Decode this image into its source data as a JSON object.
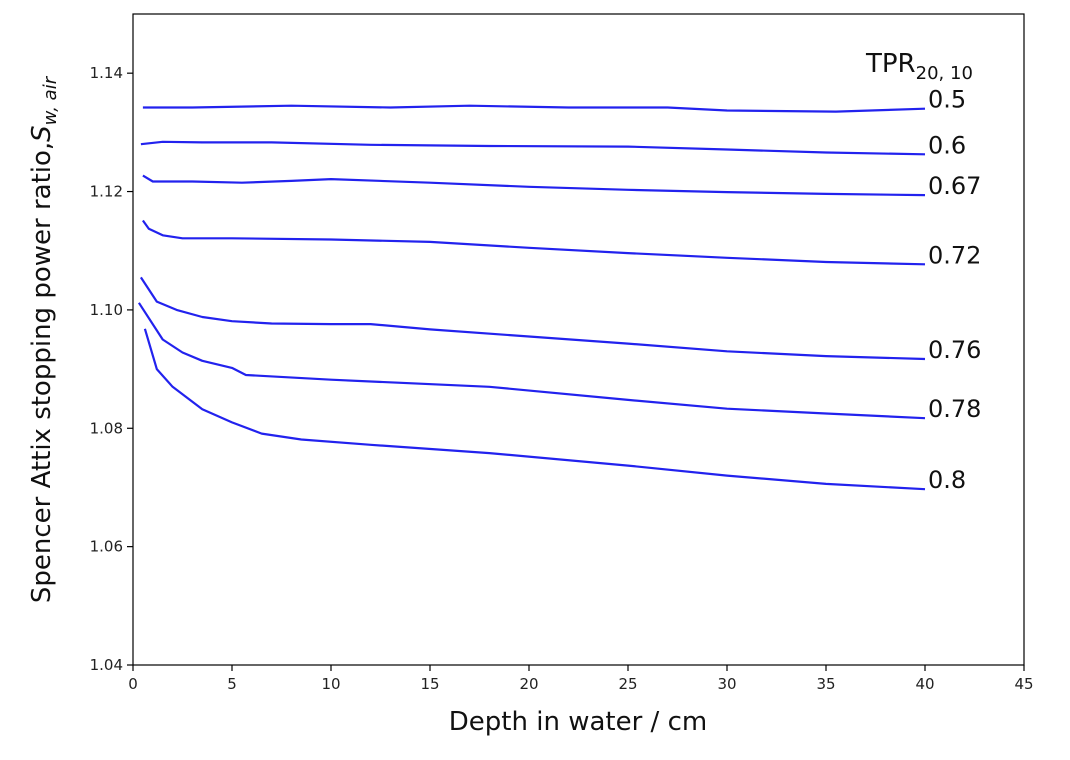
{
  "chart_data": {
    "type": "line",
    "xlabel": "Depth in water / cm",
    "ylabel": {
      "main": "Spencer Attix stopping power ratio,",
      "symbol": "S",
      "subscript": "w, air"
    },
    "legend_title": {
      "main": "TPR",
      "subscript": "20, 10"
    },
    "xlim": [
      0,
      45
    ],
    "ylim": [
      1.04,
      1.15
    ],
    "x_ticks": [
      {
        "value": 0,
        "label": "0"
      },
      {
        "value": 5,
        "label": "5"
      },
      {
        "value": 10,
        "label": "10"
      },
      {
        "value": 15,
        "label": "15"
      },
      {
        "value": 20,
        "label": "20"
      },
      {
        "value": 25,
        "label": "25"
      },
      {
        "value": 30,
        "label": "30"
      },
      {
        "value": 35,
        "label": "35"
      },
      {
        "value": 40,
        "label": "40"
      },
      {
        "value": 45,
        "label": "45"
      }
    ],
    "y_ticks": [
      {
        "value": 1.04,
        "label": "1.04"
      },
      {
        "value": 1.06,
        "label": "1.06"
      },
      {
        "value": 1.08,
        "label": "1.08"
      },
      {
        "value": 1.1,
        "label": "1.10"
      },
      {
        "value": 1.12,
        "label": "1.12"
      },
      {
        "value": 1.14,
        "label": "1.14"
      }
    ],
    "grid": false,
    "line_color": "#2222ee",
    "series": [
      {
        "name": "0.5",
        "points": [
          [
            0.5,
            1.1342
          ],
          [
            3,
            1.1342
          ],
          [
            8,
            1.1345
          ],
          [
            13,
            1.1342
          ],
          [
            17,
            1.1345
          ],
          [
            22,
            1.1342
          ],
          [
            27,
            1.1342
          ],
          [
            30,
            1.1337
          ],
          [
            35.5,
            1.1335
          ],
          [
            40,
            1.134
          ]
        ]
      },
      {
        "name": "0.6",
        "points": [
          [
            0.4,
            1.128
          ],
          [
            1.5,
            1.1284
          ],
          [
            3.5,
            1.1283
          ],
          [
            7,
            1.1283
          ],
          [
            12,
            1.1279
          ],
          [
            18,
            1.1277
          ],
          [
            25,
            1.1276
          ],
          [
            30,
            1.1271
          ],
          [
            35,
            1.1266
          ],
          [
            40,
            1.1263
          ]
        ]
      },
      {
        "name": "0.67",
        "points": [
          [
            0.5,
            1.1227
          ],
          [
            1,
            1.1217
          ],
          [
            3,
            1.1217
          ],
          [
            5.5,
            1.1215
          ],
          [
            8,
            1.1218
          ],
          [
            10,
            1.1221
          ],
          [
            15,
            1.1215
          ],
          [
            20,
            1.1208
          ],
          [
            25,
            1.1203
          ],
          [
            30,
            1.1199
          ],
          [
            35,
            1.1196
          ],
          [
            40,
            1.1194
          ]
        ]
      },
      {
        "name": "0.72",
        "points": [
          [
            0.5,
            1.1151
          ],
          [
            0.8,
            1.1137
          ],
          [
            1.5,
            1.1126
          ],
          [
            2.5,
            1.1121
          ],
          [
            5,
            1.1121
          ],
          [
            10,
            1.1119
          ],
          [
            15,
            1.1115
          ],
          [
            20,
            1.1105
          ],
          [
            25,
            1.1096
          ],
          [
            30,
            1.1088
          ],
          [
            35,
            1.1081
          ],
          [
            40,
            1.1077
          ]
        ]
      },
      {
        "name": "0.76",
        "points": [
          [
            0.4,
            1.1055
          ],
          [
            1.2,
            1.1014
          ],
          [
            2.2,
            1.1
          ],
          [
            3.5,
            1.0988
          ],
          [
            5,
            1.0981
          ],
          [
            7,
            1.0977
          ],
          [
            10,
            1.0976
          ],
          [
            12,
            1.0976
          ],
          [
            15,
            1.0967
          ],
          [
            20,
            1.0955
          ],
          [
            25,
            1.0943
          ],
          [
            30,
            1.093
          ],
          [
            35,
            1.0922
          ],
          [
            40,
            1.0917
          ]
        ]
      },
      {
        "name": "0.78",
        "points": [
          [
            0.3,
            1.1012
          ],
          [
            1.5,
            1.095
          ],
          [
            2.5,
            1.0928
          ],
          [
            3.5,
            1.0914
          ],
          [
            5,
            1.0902
          ],
          [
            5.7,
            1.089
          ],
          [
            10,
            1.0882
          ],
          [
            18,
            1.087
          ],
          [
            25,
            1.0848
          ],
          [
            30,
            1.0833
          ],
          [
            35,
            1.0825
          ],
          [
            40,
            1.0817
          ]
        ]
      },
      {
        "name": "0.8",
        "points": [
          [
            0.6,
            1.0968
          ],
          [
            1.2,
            1.09
          ],
          [
            2,
            1.087
          ],
          [
            3.5,
            1.0832
          ],
          [
            5,
            1.081
          ],
          [
            6.5,
            1.0791
          ],
          [
            8.5,
            1.0781
          ],
          [
            12,
            1.0772
          ],
          [
            18,
            1.0758
          ],
          [
            25,
            1.0737
          ],
          [
            30,
            1.072
          ],
          [
            35,
            1.0706
          ],
          [
            40,
            1.0697
          ]
        ]
      }
    ]
  }
}
